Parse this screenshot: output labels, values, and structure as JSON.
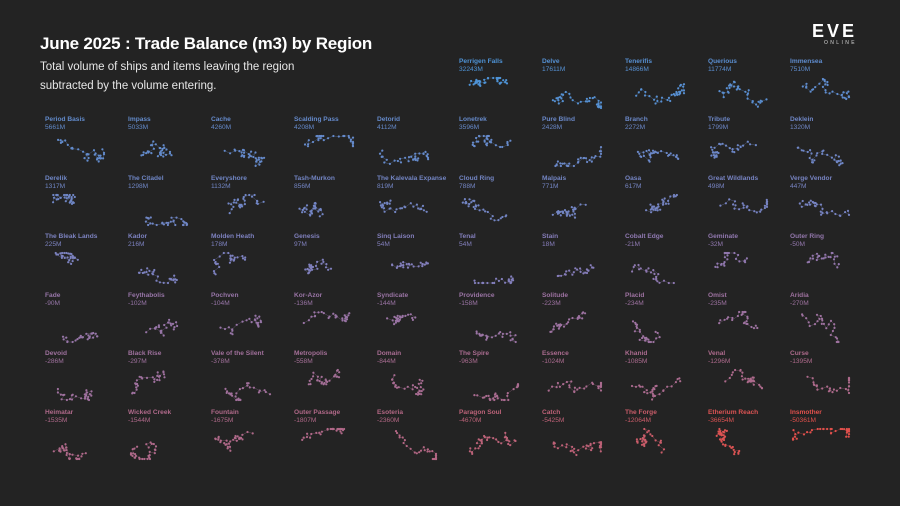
{
  "header": {
    "title": "June 2025 : Trade Balance (m3) by Region",
    "subtitle": "Total volume of ships and items leaving the region subtracted by the volume entering."
  },
  "logo": {
    "main": "EVE",
    "sub": "ONLINE"
  },
  "colors": {
    "background": "#232323",
    "positive": "#4e93d6",
    "neutral": "#8a7cb8",
    "negative": "#e0504c"
  },
  "chart_data": {
    "type": "small-multiples",
    "title": "June 2025 : Trade Balance (m3) by Region",
    "unit": "m3",
    "regions": [
      {
        "name": "Perrigen Falls",
        "value": 32243
      },
      {
        "name": "Delve",
        "value": 17611
      },
      {
        "name": "Tenerifis",
        "value": 14866
      },
      {
        "name": "Querious",
        "value": 11774
      },
      {
        "name": "Immensea",
        "value": 7510
      },
      {
        "name": "Period Basis",
        "value": 5661
      },
      {
        "name": "Impass",
        "value": 5033
      },
      {
        "name": "Cache",
        "value": 4260
      },
      {
        "name": "Scalding Pass",
        "value": 4208
      },
      {
        "name": "Detorid",
        "value": 4112
      },
      {
        "name": "Lonetrek",
        "value": 3596
      },
      {
        "name": "Pure Blind",
        "value": 2428
      },
      {
        "name": "Branch",
        "value": 2272
      },
      {
        "name": "Tribute",
        "value": 1799
      },
      {
        "name": "Deklein",
        "value": 1320
      },
      {
        "name": "Derelik",
        "value": 1317
      },
      {
        "name": "The Citadel",
        "value": 1298
      },
      {
        "name": "Everyshore",
        "value": 1132
      },
      {
        "name": "Tash-Murkon",
        "value": 856
      },
      {
        "name": "The Kalevala Expanse",
        "value": 819
      },
      {
        "name": "Cloud Ring",
        "value": 788
      },
      {
        "name": "Malpais",
        "value": 771
      },
      {
        "name": "Oasa",
        "value": 617
      },
      {
        "name": "Great Wildlands",
        "value": 498
      },
      {
        "name": "Verge Vendor",
        "value": 447
      },
      {
        "name": "The Bleak Lands",
        "value": 225
      },
      {
        "name": "Kador",
        "value": 216
      },
      {
        "name": "Molden Heath",
        "value": 178
      },
      {
        "name": "Genesis",
        "value": 97
      },
      {
        "name": "Sinq Laison",
        "value": 54
      },
      {
        "name": "Tenal",
        "value": 54
      },
      {
        "name": "Stain",
        "value": 18
      },
      {
        "name": "Cobalt Edge",
        "value": -21
      },
      {
        "name": "Geminate",
        "value": -32
      },
      {
        "name": "Outer Ring",
        "value": -50
      },
      {
        "name": "Fade",
        "value": -90
      },
      {
        "name": "Feythabolis",
        "value": -102
      },
      {
        "name": "Pochven",
        "value": -104
      },
      {
        "name": "Kor-Azor",
        "value": -136
      },
      {
        "name": "Syndicate",
        "value": -144
      },
      {
        "name": "Providence",
        "value": -158
      },
      {
        "name": "Solitude",
        "value": -223
      },
      {
        "name": "Placid",
        "value": -234
      },
      {
        "name": "Omist",
        "value": -235
      },
      {
        "name": "Aridia",
        "value": -270
      },
      {
        "name": "Devoid",
        "value": -286
      },
      {
        "name": "Black Rise",
        "value": -297
      },
      {
        "name": "Vale of the Silent",
        "value": -378
      },
      {
        "name": "Metropolis",
        "value": -558
      },
      {
        "name": "Domain",
        "value": -844
      },
      {
        "name": "The Spire",
        "value": -963
      },
      {
        "name": "Essence",
        "value": -1024
      },
      {
        "name": "Khanid",
        "value": -1085
      },
      {
        "name": "Venal",
        "value": -1296
      },
      {
        "name": "Curse",
        "value": -1395
      },
      {
        "name": "Heimatar",
        "value": -1535
      },
      {
        "name": "Wicked Creek",
        "value": -1544
      },
      {
        "name": "Fountain",
        "value": -1675
      },
      {
        "name": "Outer Passage",
        "value": -1807
      },
      {
        "name": "Esoteria",
        "value": -2360
      },
      {
        "name": "Paragon Soul",
        "value": -4670
      },
      {
        "name": "Catch",
        "value": -5425
      },
      {
        "name": "The Forge",
        "value": -12064
      },
      {
        "name": "Etherium Reach",
        "value": -36654
      },
      {
        "name": "Insmother",
        "value": -50361
      }
    ],
    "labels": [
      "32243M",
      "17611M",
      "14866M",
      "11774M",
      "7510M",
      "5661M",
      "5033M",
      "4260M",
      "4208M",
      "4112M",
      "3596M",
      "2428M",
      "2272M",
      "1799M",
      "1320M",
      "1317M",
      "1298M",
      "1132M",
      "856M",
      "819M",
      "788M",
      "771M",
      "617M",
      "498M",
      "447M",
      "225M",
      "216M",
      "178M",
      "97M",
      "54M",
      "54M",
      "18M",
      "-21M",
      "-32M",
      "-50M",
      "-90M",
      "-102M",
      "-104M",
      "-136M",
      "-144M",
      "-158M",
      "-223M",
      "-234M",
      "-235M",
      "-270M",
      "-286M",
      "-297M",
      "-378M",
      "-558M",
      "-844M",
      "-963M",
      "-1024M",
      "-1085M",
      "-1296M",
      "-1395M",
      "-1535M",
      "-1544M",
      "-1675M",
      "-1807M",
      "-2360M",
      "-4670M",
      "-5425M",
      "-12064M",
      "-36654M",
      "-50361M"
    ]
  }
}
